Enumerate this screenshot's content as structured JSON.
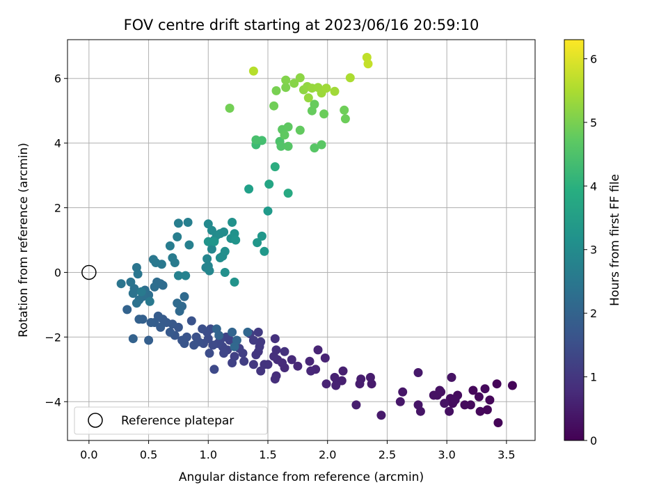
{
  "chart_data": {
    "type": "scatter",
    "title": "FOV centre drift starting at 2023/06/16 20:59:10",
    "xlabel": "Angular distance from reference (arcmin)",
    "ylabel": "Rotation from reference (arcmin)",
    "colorbar_label": "Hours from first FF file",
    "colormap": "viridis",
    "xlim": [
      -0.18,
      3.74
    ],
    "ylim": [
      -5.2,
      7.2
    ],
    "clim": [
      0,
      6.3
    ],
    "x_ticks": [
      "0.0",
      "0.5",
      "1.0",
      "1.5",
      "2.0",
      "2.5",
      "3.0",
      "3.5"
    ],
    "y_ticks": [
      "−4",
      "−2",
      "0",
      "2",
      "4",
      "6"
    ],
    "colorbar_ticks": [
      "0",
      "1",
      "2",
      "3",
      "4",
      "5",
      "6"
    ],
    "grid": true,
    "legend": {
      "position": "lower-left",
      "entries": [
        "Reference platepar"
      ]
    },
    "reference_point": {
      "x": 0.0,
      "y": 0.0
    },
    "points": [
      [
        3.43,
        -4.65,
        0.05
      ],
      [
        3.55,
        -3.5,
        0.05
      ],
      [
        3.42,
        -3.45,
        0.08
      ],
      [
        3.34,
        -4.25,
        0.1
      ],
      [
        3.36,
        -3.95,
        0.1
      ],
      [
        3.28,
        -4.3,
        0.12
      ],
      [
        3.22,
        -3.65,
        0.12
      ],
      [
        3.27,
        -3.85,
        0.14
      ],
      [
        3.32,
        -3.6,
        0.15
      ],
      [
        3.2,
        -4.1,
        0.16
      ],
      [
        3.15,
        -4.1,
        0.18
      ],
      [
        3.09,
        -3.8,
        0.2
      ],
      [
        3.05,
        -4.05,
        0.2
      ],
      [
        3.03,
        -3.9,
        0.22
      ],
      [
        3.07,
        -3.95,
        0.24
      ],
      [
        3.02,
        -4.3,
        0.25
      ],
      [
        2.95,
        -3.7,
        0.27
      ],
      [
        2.92,
        -3.8,
        0.28
      ],
      [
        2.89,
        -3.8,
        0.3
      ],
      [
        2.94,
        -3.65,
        0.3
      ],
      [
        3.04,
        -3.25,
        0.32
      ],
      [
        2.98,
        -4.05,
        0.32
      ],
      [
        2.78,
        -4.3,
        0.35
      ],
      [
        2.76,
        -4.1,
        0.36
      ],
      [
        2.63,
        -3.7,
        0.38
      ],
      [
        2.61,
        -4.0,
        0.4
      ],
      [
        2.76,
        -3.1,
        0.42
      ],
      [
        2.45,
        -4.42,
        0.45
      ],
      [
        2.37,
        -3.45,
        0.46
      ],
      [
        2.36,
        -3.25,
        0.48
      ],
      [
        2.28,
        -3.3,
        0.5
      ],
      [
        2.27,
        -3.45,
        0.5
      ],
      [
        2.24,
        -4.1,
        0.52
      ],
      [
        2.13,
        -3.05,
        0.55
      ],
      [
        2.12,
        -3.35,
        0.55
      ],
      [
        2.08,
        -3.4,
        0.58
      ],
      [
        2.06,
        -3.25,
        0.6
      ],
      [
        2.07,
        -3.5,
        0.6
      ],
      [
        1.99,
        -3.45,
        0.62
      ],
      [
        1.98,
        -2.65,
        0.62
      ],
      [
        1.92,
        -2.4,
        0.65
      ],
      [
        1.9,
        -3.0,
        0.66
      ],
      [
        1.85,
        -2.75,
        0.68
      ],
      [
        1.86,
        -3.05,
        0.7
      ],
      [
        1.75,
        -2.9,
        0.72
      ],
      [
        1.7,
        -2.7,
        0.74
      ],
      [
        1.64,
        -2.95,
        0.76
      ],
      [
        1.62,
        -2.8,
        0.78
      ],
      [
        1.58,
        -2.7,
        0.8
      ],
      [
        1.57,
        -3.2,
        0.82
      ],
      [
        1.56,
        -3.3,
        0.84
      ],
      [
        1.55,
        -2.6,
        0.86
      ],
      [
        1.57,
        -2.4,
        0.88
      ],
      [
        1.56,
        -2.05,
        0.9
      ],
      [
        1.64,
        -2.45,
        0.92
      ],
      [
        1.5,
        -2.85,
        0.94
      ],
      [
        1.47,
        -2.85,
        0.96
      ],
      [
        1.44,
        -3.05,
        0.98
      ],
      [
        1.42,
        -2.45,
        1.0
      ],
      [
        1.4,
        -2.55,
        1.02
      ],
      [
        1.38,
        -2.85,
        1.04
      ],
      [
        1.43,
        -2.3,
        1.06
      ],
      [
        1.44,
        -2.15,
        1.08
      ],
      [
        1.42,
        -1.85,
        1.1
      ],
      [
        1.38,
        -2.1,
        1.12
      ],
      [
        1.35,
        -1.9,
        1.14
      ],
      [
        1.3,
        -2.75,
        1.16
      ],
      [
        1.29,
        -2.5,
        1.18
      ],
      [
        1.26,
        -2.35,
        1.2
      ],
      [
        1.22,
        -2.6,
        1.22
      ],
      [
        1.2,
        -2.8,
        1.24
      ],
      [
        1.18,
        -2.1,
        1.26
      ],
      [
        1.16,
        -2.4,
        1.28
      ],
      [
        1.15,
        -2.0,
        1.3
      ],
      [
        1.12,
        -2.3,
        1.32
      ],
      [
        1.13,
        -2.5,
        1.34
      ],
      [
        1.1,
        -2.1,
        1.36
      ],
      [
        1.08,
        -2.2,
        1.38
      ],
      [
        1.05,
        -3.0,
        1.4
      ],
      [
        1.04,
        -2.25,
        1.42
      ],
      [
        1.02,
        -1.75,
        1.44
      ],
      [
        1.0,
        -2.05,
        1.46
      ],
      [
        1.01,
        -2.5,
        1.48
      ],
      [
        0.99,
        -1.85,
        1.5
      ],
      [
        0.96,
        -2.2,
        1.52
      ],
      [
        0.95,
        -1.75,
        1.54
      ],
      [
        0.92,
        -2.15,
        1.56
      ],
      [
        0.9,
        -2.0,
        1.58
      ],
      [
        0.88,
        -2.25,
        1.6
      ],
      [
        0.86,
        -1.5,
        1.62
      ],
      [
        0.82,
        -2.0,
        1.64
      ],
      [
        0.8,
        -2.2,
        1.66
      ],
      [
        0.78,
        -2.1,
        1.68
      ],
      [
        0.75,
        -1.7,
        1.7
      ],
      [
        0.72,
        -1.95,
        1.72
      ],
      [
        0.7,
        -1.6,
        1.74
      ],
      [
        0.68,
        -1.85,
        1.76
      ],
      [
        0.65,
        -1.55,
        1.78
      ],
      [
        0.62,
        -1.45,
        1.8
      ],
      [
        0.6,
        -1.7,
        1.82
      ],
      [
        0.58,
        -1.35,
        1.84
      ],
      [
        0.55,
        -1.55,
        1.86
      ],
      [
        0.52,
        -1.55,
        1.88
      ],
      [
        0.5,
        -2.1,
        1.9
      ],
      [
        0.45,
        -1.45,
        1.92
      ],
      [
        0.42,
        -1.45,
        1.94
      ],
      [
        0.37,
        -2.05,
        1.96
      ],
      [
        0.32,
        -1.15,
        1.98
      ],
      [
        1.09,
        -1.95,
        2.0
      ],
      [
        1.07,
        -1.75,
        2.02
      ],
      [
        1.2,
        -1.85,
        2.04
      ],
      [
        1.24,
        -2.1,
        2.06
      ],
      [
        1.33,
        -1.85,
        2.08
      ],
      [
        1.22,
        -2.3,
        2.1
      ],
      [
        0.78,
        -1.05,
        2.12
      ],
      [
        0.76,
        -1.2,
        2.14
      ],
      [
        0.8,
        -0.75,
        2.16
      ],
      [
        0.74,
        -0.95,
        2.18
      ],
      [
        0.62,
        -0.4,
        2.2
      ],
      [
        0.6,
        -0.35,
        2.22
      ],
      [
        0.57,
        -0.3,
        2.24
      ],
      [
        0.55,
        -0.45,
        2.26
      ],
      [
        0.5,
        -0.7,
        2.28
      ],
      [
        0.47,
        -0.55,
        2.3
      ],
      [
        0.45,
        -0.75,
        2.32
      ],
      [
        0.42,
        -0.85,
        2.34
      ],
      [
        0.4,
        -0.95,
        2.36
      ],
      [
        0.38,
        -0.5,
        2.38
      ],
      [
        0.37,
        -0.65,
        2.4
      ],
      [
        0.35,
        -0.3,
        2.42
      ],
      [
        0.27,
        -0.35,
        2.44
      ],
      [
        0.4,
        0.15,
        2.46
      ],
      [
        0.41,
        -0.05,
        2.48
      ],
      [
        0.54,
        0.4,
        2.5
      ],
      [
        0.56,
        0.3,
        2.52
      ],
      [
        0.61,
        0.25,
        2.54
      ],
      [
        0.51,
        -0.9,
        2.56
      ],
      [
        0.44,
        -0.6,
        2.58
      ],
      [
        0.7,
        0.45,
        2.6
      ],
      [
        0.72,
        0.3,
        2.62
      ],
      [
        0.68,
        0.82,
        2.65
      ],
      [
        0.74,
        1.1,
        2.68
      ],
      [
        0.75,
        1.52,
        2.7
      ],
      [
        0.83,
        1.55,
        2.72
      ],
      [
        0.84,
        0.85,
        2.75
      ],
      [
        0.75,
        -0.1,
        2.78
      ],
      [
        0.81,
        -0.1,
        2.8
      ],
      [
        0.98,
        0.15,
        2.82
      ],
      [
        1.0,
        0.2,
        2.85
      ],
      [
        0.99,
        0.42,
        2.88
      ],
      [
        1.01,
        0.05,
        2.9
      ],
      [
        1.03,
        0.72,
        2.92
      ],
      [
        1.05,
        1.0,
        2.95
      ],
      [
        1.0,
        1.5,
        2.98
      ],
      [
        1.03,
        1.3,
        3.0
      ],
      [
        1.07,
        1.15,
        3.02
      ],
      [
        1.1,
        1.2,
        3.04
      ],
      [
        1.13,
        1.25,
        3.06
      ],
      [
        1.1,
        0.45,
        3.08
      ],
      [
        1.12,
        0.5,
        3.1
      ],
      [
        1.14,
        0.65,
        3.12
      ],
      [
        1.14,
        0.0,
        3.14
      ],
      [
        1.19,
        1.05,
        3.16
      ],
      [
        1.2,
        1.55,
        3.18
      ],
      [
        1.22,
        1.2,
        3.2
      ],
      [
        1.22,
        -0.3,
        3.22
      ],
      [
        1.23,
        1.0,
        3.24
      ],
      [
        1.0,
        0.95,
        3.26
      ],
      [
        1.05,
        0.95,
        3.28
      ],
      [
        1.41,
        0.92,
        3.3
      ],
      [
        1.45,
        1.12,
        3.32
      ],
      [
        1.47,
        0.65,
        3.34
      ],
      [
        1.5,
        1.9,
        3.4
      ],
      [
        1.34,
        2.58,
        3.55
      ],
      [
        1.51,
        2.73,
        3.7
      ],
      [
        1.67,
        2.45,
        3.8
      ],
      [
        1.56,
        3.27,
        3.9
      ],
      [
        1.4,
        3.95,
        4.3
      ],
      [
        1.45,
        4.08,
        4.4
      ],
      [
        1.4,
        4.1,
        4.45
      ],
      [
        1.6,
        4.05,
        4.5
      ],
      [
        1.61,
        3.9,
        4.55
      ],
      [
        1.67,
        3.9,
        4.6
      ],
      [
        1.89,
        3.85,
        4.62
      ],
      [
        1.95,
        3.95,
        4.65
      ],
      [
        1.62,
        4.42,
        4.68
      ],
      [
        1.67,
        4.5,
        4.7
      ],
      [
        1.64,
        4.25,
        4.72
      ],
      [
        1.77,
        4.4,
        4.75
      ],
      [
        1.87,
        5.0,
        4.8
      ],
      [
        1.89,
        5.2,
        4.82
      ],
      [
        1.97,
        4.9,
        4.85
      ],
      [
        2.15,
        4.75,
        4.88
      ],
      [
        2.14,
        5.02,
        4.9
      ],
      [
        1.55,
        5.15,
        4.92
      ],
      [
        1.18,
        5.08,
        4.95
      ],
      [
        1.57,
        5.62,
        5.0
      ],
      [
        1.65,
        5.72,
        5.05
      ],
      [
        1.65,
        5.95,
        5.1
      ],
      [
        1.72,
        5.85,
        5.15
      ],
      [
        1.77,
        6.02,
        5.2
      ],
      [
        1.8,
        5.65,
        5.22
      ],
      [
        1.83,
        5.75,
        5.25
      ],
      [
        1.84,
        5.4,
        5.28
      ],
      [
        1.87,
        5.7,
        5.3
      ],
      [
        1.92,
        5.72,
        5.32
      ],
      [
        1.95,
        5.55,
        5.35
      ],
      [
        1.99,
        5.7,
        5.38
      ],
      [
        2.06,
        5.6,
        5.4
      ],
      [
        2.19,
        6.02,
        5.5
      ],
      [
        1.38,
        6.23,
        5.6
      ],
      [
        2.33,
        6.65,
        5.7
      ],
      [
        2.34,
        6.45,
        5.75
      ]
    ]
  }
}
